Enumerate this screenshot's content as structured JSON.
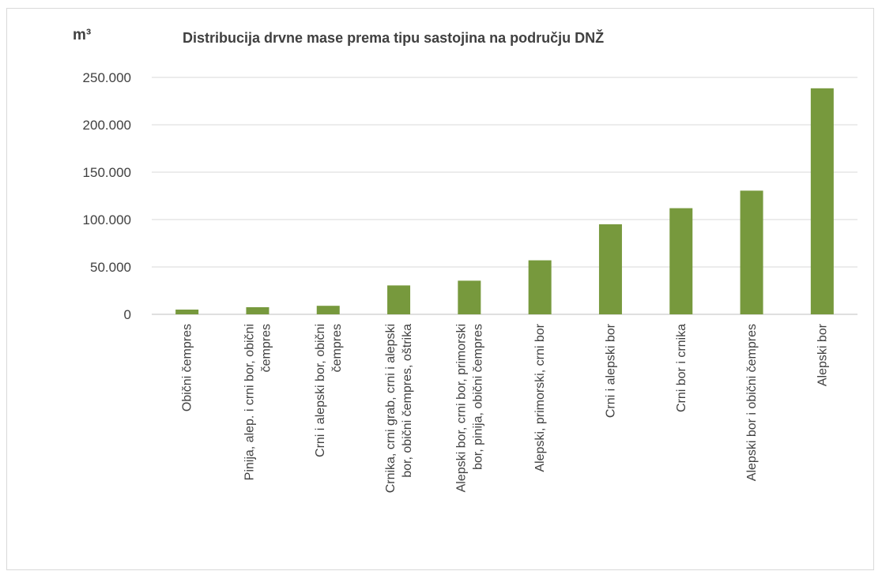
{
  "chart_data": {
    "type": "bar",
    "title": "Distribucija drvne mase prema tipu sastojina na području DNŽ",
    "ylabel": "m³",
    "xlabel": "",
    "ylim": [
      0,
      250000
    ],
    "yticks": [
      0,
      50000,
      100000,
      150000,
      200000,
      250000
    ],
    "ytick_labels": [
      "0",
      "50.000",
      "100.000",
      "150.000",
      "200.000",
      "250.000"
    ],
    "grid": true,
    "legend": "none",
    "bar_color": "#77993d",
    "categories": [
      [
        "Obični čempres"
      ],
      [
        "Pinija, alep. i crni bor, obični",
        "čempres"
      ],
      [
        "Crni i alepski bor, obični",
        "čempres"
      ],
      [
        "Crnika, crni grab, crni i alepski",
        "bor, obični čempres, oštrika"
      ],
      [
        "Alepski bor, crni bor, primorski",
        "bor, pinija, obični čempres"
      ],
      [
        "Alepski, primorski, crni bor"
      ],
      [
        "Crni i alepski bor"
      ],
      [
        "Crni bor i crnika"
      ],
      [
        "Alepski bor i obični čempres"
      ],
      [
        "Alepski bor"
      ]
    ],
    "values": [
      5000,
      7500,
      9000,
      30500,
      35500,
      57000,
      95000,
      112000,
      130500,
      238500
    ]
  }
}
